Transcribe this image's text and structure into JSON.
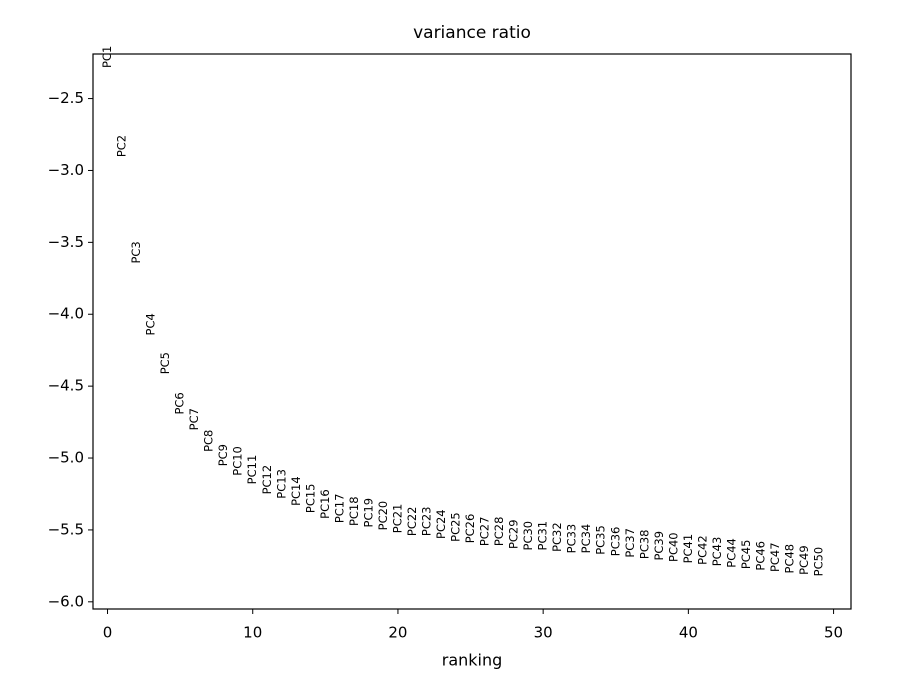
{
  "chart_data": {
    "type": "scatter",
    "title": "variance ratio",
    "x_label": "ranking",
    "x": [
      0,
      1,
      2,
      3,
      4,
      5,
      6,
      7,
      8,
      9,
      10,
      11,
      12,
      13,
      14,
      15,
      16,
      17,
      18,
      19,
      20,
      21,
      22,
      23,
      24,
      25,
      26,
      27,
      28,
      29,
      30,
      31,
      32,
      33,
      34,
      35,
      36,
      37,
      38,
      39,
      40,
      41,
      42,
      43,
      44,
      45,
      46,
      47,
      48,
      49
    ],
    "labels": [
      "PC1",
      "PC2",
      "PC3",
      "PC4",
      "PC5",
      "PC6",
      "PC7",
      "PC8",
      "PC9",
      "PC10",
      "PC11",
      "PC12",
      "PC13",
      "PC14",
      "PC15",
      "PC16",
      "PC17",
      "PC18",
      "PC19",
      "PC20",
      "PC21",
      "PC22",
      "PC23",
      "PC24",
      "PC25",
      "PC26",
      "PC27",
      "PC28",
      "PC29",
      "PC30",
      "PC31",
      "PC32",
      "PC33",
      "PC34",
      "PC35",
      "PC36",
      "PC37",
      "PC38",
      "PC39",
      "PC40",
      "PC41",
      "PC42",
      "PC43",
      "PC44",
      "PC45",
      "PC46",
      "PC47",
      "PC48",
      "PC49",
      "PC50"
    ],
    "values": [
      -2.21,
      -2.83,
      -3.57,
      -4.07,
      -4.34,
      -4.62,
      -4.73,
      -4.88,
      -4.98,
      -5.02,
      -5.08,
      -5.15,
      -5.18,
      -5.23,
      -5.28,
      -5.32,
      -5.35,
      -5.37,
      -5.38,
      -5.4,
      -5.42,
      -5.44,
      -5.44,
      -5.46,
      -5.48,
      -5.49,
      -5.51,
      -5.51,
      -5.53,
      -5.54,
      -5.54,
      -5.55,
      -5.56,
      -5.56,
      -5.57,
      -5.58,
      -5.59,
      -5.6,
      -5.61,
      -5.62,
      -5.63,
      -5.64,
      -5.65,
      -5.66,
      -5.67,
      -5.68,
      -5.69,
      -5.7,
      -5.71,
      -5.72
    ],
    "color": "#000000",
    "xlim": [
      -1.0,
      51.2
    ],
    "xticks": [
      0,
      10,
      20,
      30,
      40,
      50
    ],
    "ylim": [
      -6.05,
      -2.19
    ],
    "yticks": [
      {
        "value": -2.5,
        "label": "−2.5"
      },
      {
        "value": -3.0,
        "label": "−3.0"
      },
      {
        "value": -3.5,
        "label": "−3.5"
      },
      {
        "value": -4.0,
        "label": "−4.0"
      },
      {
        "value": -4.5,
        "label": "−4.5"
      },
      {
        "value": -5.0,
        "label": "−5.0"
      },
      {
        "value": -5.5,
        "label": "−5.5"
      },
      {
        "value": -6.0,
        "label": "−6.0"
      }
    ],
    "grid": false
  }
}
